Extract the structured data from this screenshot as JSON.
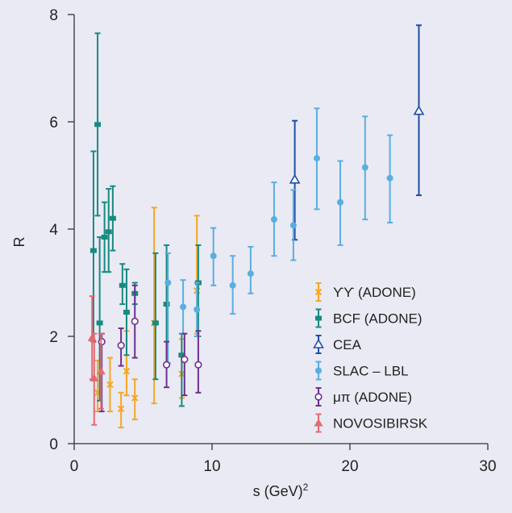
{
  "chart_data": {
    "type": "scatter",
    "xlabel": "s (GeV)²",
    "ylabel": "R",
    "xlim": [
      0,
      30
    ],
    "ylim": [
      0,
      8
    ],
    "x_ticks": [
      0,
      10,
      20,
      30
    ],
    "y_ticks": [
      0,
      2,
      4,
      6,
      8
    ],
    "grid": false,
    "legend_position": "right",
    "series": [
      {
        "name": "ϒϒ (ADONE)",
        "color": "#f5a623",
        "marker": "cross",
        "points": [
          {
            "x": 1.7,
            "y": 0.95,
            "lo": 0.6,
            "hi": 1.55
          },
          {
            "x": 2.6,
            "y": 1.1,
            "lo": 0.6,
            "hi": 1.6
          },
          {
            "x": 3.4,
            "y": 0.65,
            "lo": 0.3,
            "hi": 0.95
          },
          {
            "x": 3.8,
            "y": 1.35,
            "lo": 0.9,
            "hi": 2.1
          },
          {
            "x": 4.4,
            "y": 0.85,
            "lo": 0.45,
            "hi": 1.2
          },
          {
            "x": 5.8,
            "y": 2.25,
            "lo": 0.75,
            "hi": 4.4
          },
          {
            "x": 7.8,
            "y": 1.3,
            "lo": 0.85,
            "hi": 1.95
          },
          {
            "x": 8.9,
            "y": 2.85,
            "lo": 2.05,
            "hi": 4.25
          }
        ]
      },
      {
        "name": "BCF (ADONE)",
        "color": "#178a82",
        "marker": "square",
        "points": [
          {
            "x": 1.4,
            "y": 3.6,
            "lo": 1.9,
            "hi": 5.45
          },
          {
            "x": 1.7,
            "y": 5.95,
            "lo": 4.25,
            "hi": 7.65
          },
          {
            "x": 1.85,
            "y": 2.25,
            "lo": 0.8,
            "hi": 3.85
          },
          {
            "x": 2.2,
            "y": 3.85,
            "lo": 3.2,
            "hi": 4.5
          },
          {
            "x": 2.5,
            "y": 3.95,
            "lo": 3.2,
            "hi": 4.75
          },
          {
            "x": 2.8,
            "y": 4.2,
            "lo": 3.6,
            "hi": 4.8
          },
          {
            "x": 3.5,
            "y": 2.95,
            "lo": 2.6,
            "hi": 3.35
          },
          {
            "x": 3.8,
            "y": 2.45,
            "lo": 1.65,
            "hi": 3.25
          },
          {
            "x": 4.4,
            "y": 2.8,
            "lo": 2.6,
            "hi": 3.0
          },
          {
            "x": 5.9,
            "y": 2.25,
            "lo": 1.2,
            "hi": 3.55
          },
          {
            "x": 6.7,
            "y": 2.6,
            "lo": 1.5,
            "hi": 3.7
          },
          {
            "x": 7.8,
            "y": 1.65,
            "lo": 0.7,
            "hi": 2.05
          },
          {
            "x": 9.0,
            "y": 3.0,
            "lo": 2.0,
            "hi": 3.7
          }
        ]
      },
      {
        "name": "CEA",
        "color": "#1f4fa3",
        "marker": "triangle-open",
        "points": [
          {
            "x": 16.0,
            "y": 4.92,
            "lo": 3.8,
            "hi": 6.02
          },
          {
            "x": 25.0,
            "y": 6.2,
            "lo": 4.63,
            "hi": 7.8
          }
        ]
      },
      {
        "name": "SLAC – LBL",
        "color": "#5aaee0",
        "marker": "circle",
        "points": [
          {
            "x": 6.8,
            "y": 3.0,
            "lo": 1.5,
            "hi": 3.55
          },
          {
            "x": 7.9,
            "y": 2.55,
            "lo": 2.05,
            "hi": 3.05
          },
          {
            "x": 8.9,
            "y": 2.5,
            "lo": 2.0,
            "hi": 3.0
          },
          {
            "x": 10.1,
            "y": 3.5,
            "lo": 2.95,
            "hi": 4.02
          },
          {
            "x": 11.5,
            "y": 2.95,
            "lo": 2.42,
            "hi": 3.5
          },
          {
            "x": 12.8,
            "y": 3.17,
            "lo": 2.8,
            "hi": 3.67
          },
          {
            "x": 14.5,
            "y": 4.18,
            "lo": 3.5,
            "hi": 4.87
          },
          {
            "x": 15.9,
            "y": 4.07,
            "lo": 3.42,
            "hi": 4.73
          },
          {
            "x": 17.6,
            "y": 5.32,
            "lo": 4.37,
            "hi": 6.25
          },
          {
            "x": 19.3,
            "y": 4.5,
            "lo": 3.7,
            "hi": 5.27
          },
          {
            "x": 21.1,
            "y": 5.15,
            "lo": 4.18,
            "hi": 6.1
          },
          {
            "x": 22.9,
            "y": 4.95,
            "lo": 4.12,
            "hi": 5.75
          }
        ]
      },
      {
        "name": "μπ (ADONE)",
        "color": "#6d2f8f",
        "marker": "circle-open",
        "points": [
          {
            "x": 2.0,
            "y": 1.9,
            "lo": 0.6,
            "hi": 2.05
          },
          {
            "x": 3.4,
            "y": 1.83,
            "lo": 1.45,
            "hi": 2.15
          },
          {
            "x": 4.4,
            "y": 2.28,
            "lo": 1.6,
            "hi": 2.95
          },
          {
            "x": 6.7,
            "y": 1.47,
            "lo": 1.05,
            "hi": 1.9
          },
          {
            "x": 8.0,
            "y": 1.57,
            "lo": 0.9,
            "hi": 2.05
          },
          {
            "x": 9.0,
            "y": 1.47,
            "lo": 0.95,
            "hi": 2.1
          }
        ]
      },
      {
        "name": "NOVOSIBIRSK",
        "color": "#e36a73",
        "marker": "triangle",
        "points": [
          {
            "x": 1.3,
            "y": 1.97,
            "lo": 1.2,
            "hi": 2.75
          },
          {
            "x": 1.45,
            "y": 1.22,
            "lo": 0.35,
            "hi": 2.05
          },
          {
            "x": 1.95,
            "y": 1.35,
            "lo": 0.65,
            "hi": 2.05
          }
        ]
      }
    ]
  }
}
